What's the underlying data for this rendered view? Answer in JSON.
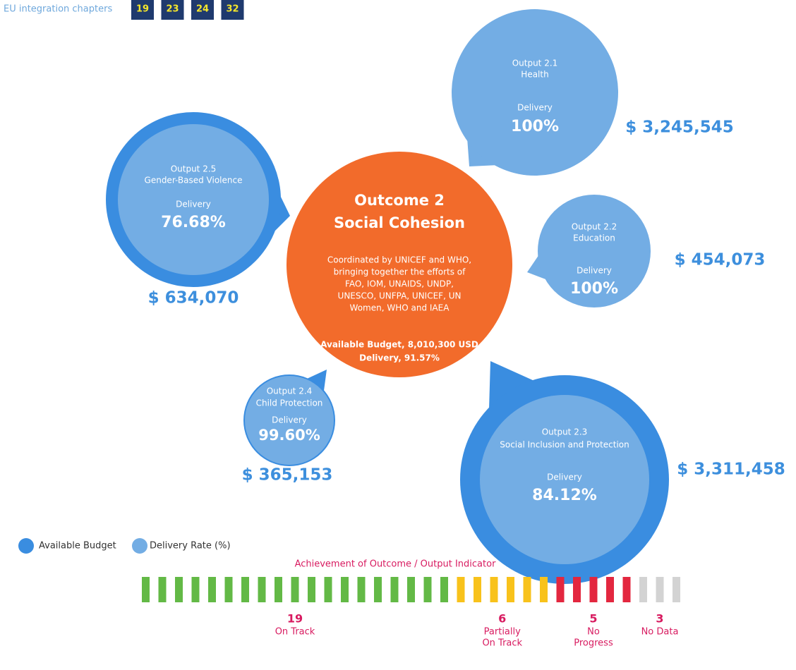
{
  "header": {
    "label": "EU integration chapters",
    "chapters": [
      "19",
      "23",
      "24",
      "32"
    ]
  },
  "outcome": {
    "title": [
      "Outcome 2",
      "Social Cohesion"
    ],
    "description": [
      "Coordinated by UNICEF and WHO,",
      "bringing together the efforts of",
      "FAO, IOM, UNAIDS, UNDP,",
      "UNESCO, UNFPA, UNICEF, UN",
      "Women, WHO and IAEA"
    ],
    "budget": "Available Budget, 8,010,300 USD",
    "delivery": "Delivery, 91.57%"
  },
  "outputs": [
    {
      "name": "Output 2.1",
      "theme": "Health",
      "delivery_label": "Delivery",
      "delivery": "100%",
      "budget": "$ 3,245,545"
    },
    {
      "name": "Output 2.2",
      "theme": "Education",
      "delivery_label": "Delivery",
      "delivery": "100%",
      "budget": "$ 454,073"
    },
    {
      "name": "Output 2.3",
      "theme": "Social Inclusion and Protection",
      "delivery_label": "Delivery",
      "delivery": "84.12%",
      "budget": "$ 3,311,458"
    },
    {
      "name": "Output 2.4",
      "theme": "Child Protection",
      "delivery_label": "Delivery",
      "delivery": "99.60%",
      "budget": "$ 365,153"
    },
    {
      "name": "Output 2.5",
      "theme": "Gender-Based Violence",
      "delivery_label": "Delivery",
      "delivery": "76.68%",
      "budget": "$ 634,070"
    }
  ],
  "legend": [
    "Available Budget",
    "Delivery Rate (%)"
  ],
  "indicators": {
    "title": "Achievement of Outcome / Output Indicator",
    "groups": [
      {
        "count": 19,
        "label": [
          "On Track"
        ],
        "color": "#63b946"
      },
      {
        "count": 6,
        "label": [
          "Partially",
          "On Track"
        ],
        "color": "#f8c21b"
      },
      {
        "count": 5,
        "label": [
          "No",
          "Progress"
        ],
        "color": "#e3273f"
      },
      {
        "count": 3,
        "label": [
          "No Data"
        ],
        "color": "#d3d3d3"
      }
    ]
  }
}
